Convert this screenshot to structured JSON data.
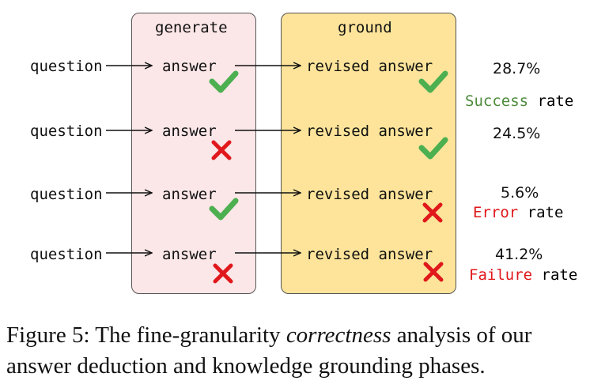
{
  "columns": {
    "generate": "generate",
    "ground": "ground"
  },
  "rows": [
    {
      "question": "question",
      "answer": "answer",
      "revised": "revised answer",
      "answer_mark": "check",
      "revised_mark": "check",
      "percent": "28.7%"
    },
    {
      "question": "question",
      "answer": "answer",
      "revised": "revised answer",
      "answer_mark": "cross",
      "revised_mark": "check",
      "percent": "24.5%"
    },
    {
      "question": "question",
      "answer": "answer",
      "revised": "revised answer",
      "answer_mark": "check",
      "revised_mark": "cross",
      "percent": "5.6%"
    },
    {
      "question": "question",
      "answer": "answer",
      "revised": "revised answer",
      "answer_mark": "cross",
      "revised_mark": "cross",
      "percent": "41.2%"
    }
  ],
  "rate_labels": {
    "success": {
      "word": "Success",
      "suffix": " rate"
    },
    "error": {
      "word": "Error",
      "suffix": " rate"
    },
    "failure": {
      "word": "Failure",
      "suffix": " rate"
    }
  },
  "caption": {
    "prefix": "Figure 5: The fine-granularity ",
    "emph": "correctness",
    "suffix": " analysis of our answer deduction and knowledge grounding phases."
  },
  "colors": {
    "check": "#4caf50",
    "cross": "#e0181b",
    "success": "#4c8b3a",
    "error": "#e0181b"
  }
}
